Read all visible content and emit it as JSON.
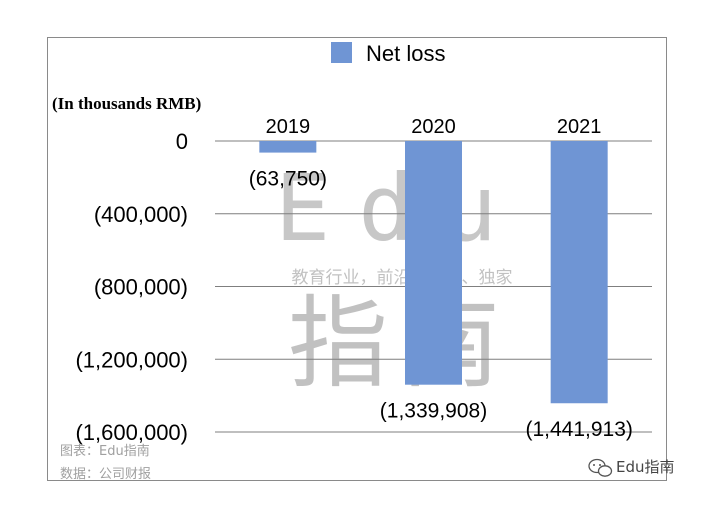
{
  "chart_data": {
    "type": "bar",
    "categories": [
      "2019",
      "2020",
      "2021"
    ],
    "series": [
      {
        "name": "Net loss",
        "values": [
          -63750,
          -1339908,
          -1441913
        ]
      }
    ],
    "value_labels": [
      "(63,750)",
      "(1,339,908)",
      "(1,441,913)"
    ],
    "ylabel": "(In thousands RMB)",
    "ylim": [
      -1600000,
      0
    ],
    "yticks": [
      {
        "value": 0,
        "label": "0"
      },
      {
        "value": -400000,
        "label": "(400,000)"
      },
      {
        "value": -800000,
        "label": "(800,000)"
      },
      {
        "value": -1200000,
        "label": "(1,200,000)"
      },
      {
        "value": -1600000,
        "label": "(1,600,000)"
      }
    ],
    "grid": true,
    "legend": "top",
    "bar_color": "#6f95d4"
  },
  "watermark": {
    "latin": "Edu",
    "chinese": "指南",
    "tagline": "教育行业，前沿、深度、独家"
  },
  "footer": {
    "chart_credit": "图表：Edu指南",
    "data_source": "数据：公司财报"
  },
  "brand": {
    "name": "Edu指南",
    "icon": "wechat-icon"
  }
}
